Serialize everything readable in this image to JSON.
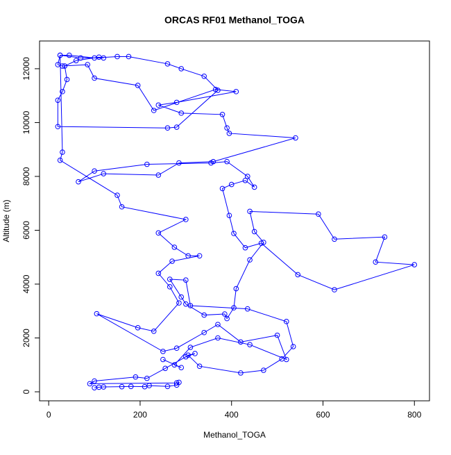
{
  "chart_data": {
    "type": "line",
    "title": "ORCAS RF01 Methanol_TOGA",
    "x_label": "Methanol_TOGA",
    "y_label": "Altitude (m)",
    "color": "#0000ff",
    "xlim": [
      -20,
      833
    ],
    "ylim": [
      -335,
      13030
    ],
    "xticks": [
      0,
      200,
      400,
      600,
      800
    ],
    "yticks": [
      0,
      2000,
      4000,
      6000,
      8000,
      10000,
      12000
    ],
    "series": [
      {
        "name": "Methanol_TOGA",
        "color": "#0000ff",
        "x": [
          100,
          110,
          120,
          160,
          180,
          210,
          220,
          260,
          280,
          285,
          280,
          90,
          100,
          190,
          215,
          255,
          300,
          320,
          305,
          330,
          420,
          470,
          510,
          535,
          520,
          435,
          310,
          300,
          265,
          290,
          300,
          340,
          385,
          390,
          405,
          410,
          440,
          470,
          450,
          440,
          590,
          625,
          735,
          715,
          800,
          625,
          545,
          465,
          430,
          405,
          395,
          380,
          400,
          430,
          450,
          435,
          390,
          355,
          215,
          100,
          65,
          120,
          240,
          285,
          360,
          540,
          395,
          390,
          380,
          290,
          240,
          280,
          410,
          365,
          230,
          195,
          100,
          85,
          30,
          20,
          25,
          45,
          100,
          150,
          175,
          260,
          290,
          340,
          370,
          280,
          260,
          20,
          20,
          30,
          40,
          35,
          60,
          110,
          120,
          70,
          25,
          30,
          25,
          150,
          160,
          300,
          240,
          275,
          305,
          330,
          270,
          240,
          265,
          285,
          230,
          195,
          105,
          250,
          280,
          340,
          370,
          420,
          500,
          520,
          440,
          370,
          310,
          275,
          290,
          250
        ],
        "values": [
          150,
          170,
          180,
          190,
          200,
          190,
          230,
          200,
          250,
          350,
          330,
          300,
          400,
          550,
          500,
          870,
          1300,
          1420,
          1360,
          950,
          700,
          800,
          1220,
          1680,
          2610,
          3080,
          3200,
          4150,
          4180,
          3520,
          3260,
          2850,
          2890,
          2720,
          3120,
          3830,
          4900,
          5550,
          5950,
          6700,
          6600,
          5670,
          5750,
          4820,
          4720,
          3790,
          4350,
          5520,
          5350,
          5880,
          6550,
          7550,
          7700,
          7850,
          7600,
          8000,
          8550,
          8500,
          8450,
          8200,
          7800,
          8100,
          8050,
          8500,
          8550,
          9430,
          9600,
          9800,
          10300,
          10350,
          10650,
          10750,
          11150,
          11230,
          10450,
          11380,
          11650,
          12150,
          12100,
          12150,
          12500,
          12500,
          12400,
          12450,
          12450,
          12180,
          12000,
          11720,
          11200,
          9830,
          9800,
          9850,
          10830,
          11150,
          11600,
          12100,
          12300,
          12430,
          12400,
          12400,
          12500,
          8900,
          8600,
          7300,
          6870,
          6400,
          5900,
          5370,
          5050,
          5050,
          4850,
          4400,
          3900,
          3300,
          2250,
          2380,
          2900,
          1500,
          1620,
          2200,
          2500,
          1850,
          2100,
          1200,
          1750,
          2000,
          1650,
          1000,
          900,
          1200
        ]
      }
    ]
  }
}
